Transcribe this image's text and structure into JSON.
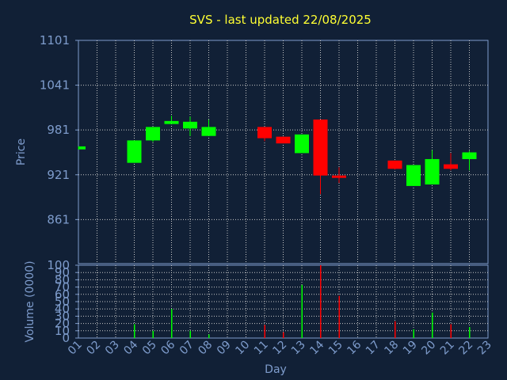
{
  "chart_data": {
    "type": "candlestick",
    "title": "SVS - last updated 22/08/2025",
    "xlabel": "Day",
    "price_panel": {
      "ylabel": "Price",
      "ylim": [
        802,
        1101
      ],
      "yticks": [
        "1101",
        "1041",
        "981",
        "921",
        "861"
      ],
      "grid": true
    },
    "volume_panel": {
      "ylabel": "Volume (0000)",
      "ylim": [
        0,
        100
      ],
      "yticks": [
        "100",
        "90",
        "80",
        "70",
        "60",
        "50",
        "40",
        "30",
        "20",
        "10",
        "0"
      ],
      "grid": true
    },
    "x_ticks": [
      "01",
      "02",
      "03",
      "04",
      "05",
      "06",
      "07",
      "08",
      "09",
      "10",
      "11",
      "12",
      "13",
      "14",
      "15",
      "16",
      "17",
      "18",
      "19",
      "20",
      "21",
      "22",
      "23"
    ],
    "colors": {
      "up": "#00ff00",
      "down": "#ff0000",
      "grid": "#c8c8c8",
      "axis": "#7e9ccc",
      "background": "#112036",
      "title": "#ffff33"
    },
    "candles": [
      {
        "day": "01",
        "open": 955,
        "high": 959,
        "low": 955,
        "close": 959
      },
      {
        "day": "04",
        "open": 937,
        "high": 967,
        "low": 937,
        "close": 967
      },
      {
        "day": "05",
        "open": 967,
        "high": 985,
        "low": 965,
        "close": 985
      },
      {
        "day": "06",
        "open": 989,
        "high": 1000,
        "low": 989,
        "close": 993
      },
      {
        "day": "07",
        "open": 983,
        "high": 999,
        "low": 973,
        "close": 992
      },
      {
        "day": "08",
        "open": 973,
        "high": 995,
        "low": 973,
        "close": 985
      },
      {
        "day": "11",
        "open": 985,
        "high": 985,
        "low": 966,
        "close": 970
      },
      {
        "day": "12",
        "open": 972,
        "high": 972,
        "low": 963,
        "close": 963
      },
      {
        "day": "13",
        "open": 950,
        "high": 975,
        "low": 950,
        "close": 975
      },
      {
        "day": "14",
        "open": 995,
        "high": 995,
        "low": 895,
        "close": 920
      },
      {
        "day": "15",
        "open": 920,
        "high": 931,
        "low": 910,
        "close": 917
      },
      {
        "day": "18",
        "open": 940,
        "high": 940,
        "low": 928,
        "close": 929
      },
      {
        "day": "19",
        "open": 906,
        "high": 934,
        "low": 906,
        "close": 934
      },
      {
        "day": "20",
        "open": 908,
        "high": 954,
        "low": 908,
        "close": 942
      },
      {
        "day": "21",
        "open": 935,
        "high": 950,
        "low": 927,
        "close": 929
      },
      {
        "day": "22",
        "open": 942,
        "high": 953,
        "low": 927,
        "close": 951
      }
    ],
    "volumes": [
      {
        "day": "04",
        "value": 19,
        "color": "up"
      },
      {
        "day": "05",
        "value": 10,
        "color": "up"
      },
      {
        "day": "06",
        "value": 40,
        "color": "up"
      },
      {
        "day": "07",
        "value": 10,
        "color": "up"
      },
      {
        "day": "08",
        "value": 5,
        "color": "up"
      },
      {
        "day": "11",
        "value": 18,
        "color": "down"
      },
      {
        "day": "12",
        "value": 8,
        "color": "down"
      },
      {
        "day": "13",
        "value": 73,
        "color": "up"
      },
      {
        "day": "14",
        "value": 100,
        "color": "down"
      },
      {
        "day": "15",
        "value": 58,
        "color": "down"
      },
      {
        "day": "18",
        "value": 23,
        "color": "down"
      },
      {
        "day": "19",
        "value": 12,
        "color": "up"
      },
      {
        "day": "20",
        "value": 35,
        "color": "up"
      },
      {
        "day": "21",
        "value": 19,
        "color": "down"
      },
      {
        "day": "22",
        "value": 15,
        "color": "up"
      }
    ]
  }
}
